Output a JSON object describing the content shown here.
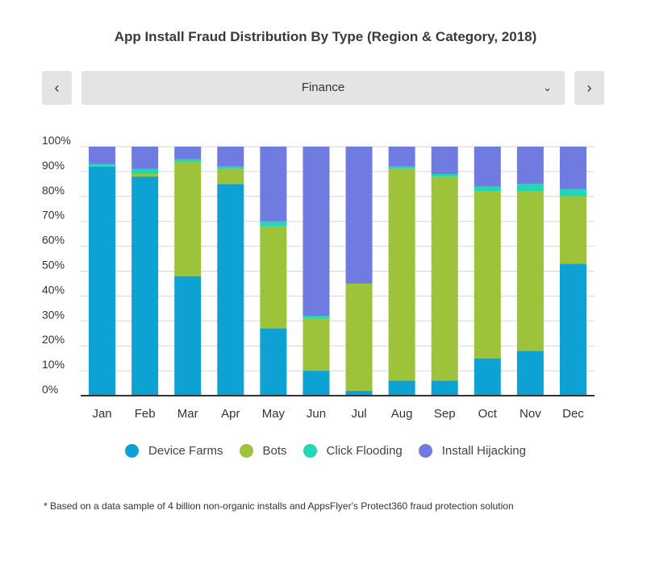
{
  "title": "App Install Fraud Distribution By Type (Region & Category, 2018)",
  "nav": {
    "prev_icon": "‹",
    "next_icon": "›"
  },
  "selector": {
    "value": "Finance",
    "chevron_icon": "⌄"
  },
  "colors": {
    "device_farms": "#0ea1d4",
    "bots": "#9cc33a",
    "click_flooding": "#22d8b4",
    "install_hijacking": "#6f7be0",
    "grid": "#d6d6d6",
    "axis": "#333333"
  },
  "chart_data": {
    "type": "bar",
    "stacked": true,
    "categories": [
      "Jan",
      "Feb",
      "Mar",
      "Apr",
      "May",
      "Jun",
      "Jul",
      "Aug",
      "Sep",
      "Oct",
      "Nov",
      "Dec"
    ],
    "ylim": [
      0,
      100
    ],
    "yticks": [
      "0%",
      "10%",
      "20%",
      "30%",
      "40%",
      "50%",
      "60%",
      "70%",
      "80%",
      "90%",
      "100%"
    ],
    "grid": true,
    "legend_position": "bottom",
    "series": [
      {
        "name": "Device Farms",
        "color": "#0ea1d4",
        "values": [
          92,
          88,
          48,
          85,
          27,
          10,
          2,
          6,
          6,
          15,
          18,
          53
        ]
      },
      {
        "name": "Bots",
        "color": "#9cc33a",
        "values": [
          0,
          1,
          46,
          6,
          41,
          21,
          43,
          85,
          82,
          67,
          64,
          27
        ]
      },
      {
        "name": "Click Flooding",
        "color": "#22d8b4",
        "values": [
          1,
          2,
          1,
          1,
          2,
          1,
          0,
          1,
          1,
          2,
          3,
          3
        ]
      },
      {
        "name": "Install Hijacking",
        "color": "#6f7be0",
        "values": [
          7,
          9,
          5,
          8,
          30,
          68,
          55,
          8,
          11,
          16,
          15,
          17
        ]
      }
    ]
  },
  "footnote": "* Based on a data sample of 4 billion non-organic installs and AppsFlyer's Protect360 fraud protection solution"
}
